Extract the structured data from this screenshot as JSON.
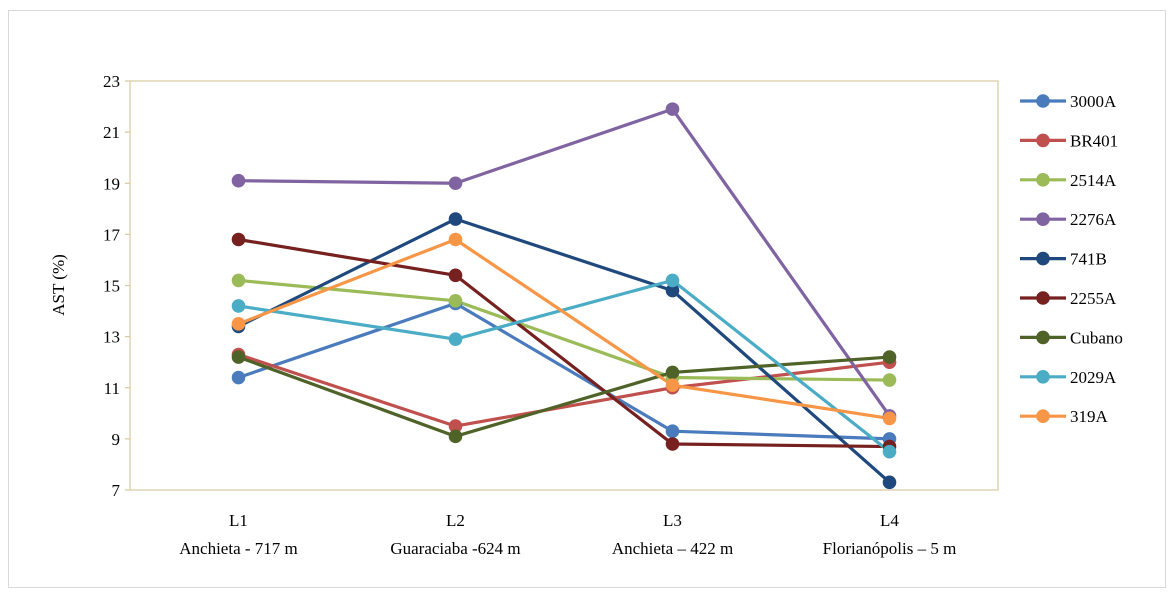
{
  "chart_data": {
    "type": "line",
    "title": "",
    "xlabel": "",
    "ylabel": "AST (%)",
    "ylim": [
      7,
      23
    ],
    "yticks": [
      7,
      9,
      11,
      13,
      15,
      17,
      19,
      21,
      23
    ],
    "grid": false,
    "legend_position": "right",
    "categories": [
      {
        "line1": "L1",
        "line2": "Anchieta - 717 m"
      },
      {
        "line1": "L2",
        "line2": "Guaraciaba -624 m"
      },
      {
        "line1": "L3",
        "line2": "Anchieta – 422 m"
      },
      {
        "line1": "L4",
        "line2": "Florianópolis – 5 m"
      }
    ],
    "series": [
      {
        "name": "3000A",
        "color": "#4a7bbd",
        "values": [
          11.4,
          14.3,
          9.3,
          9.0
        ]
      },
      {
        "name": "BR401",
        "color": "#c0504d",
        "values": [
          12.3,
          9.5,
          11.0,
          12.0
        ]
      },
      {
        "name": "2514A",
        "color": "#9bbb59",
        "values": [
          15.2,
          14.4,
          11.4,
          11.3
        ]
      },
      {
        "name": "2276A",
        "color": "#8064a2",
        "values": [
          19.1,
          19.0,
          21.9,
          9.9
        ]
      },
      {
        "name": "741B",
        "color": "#1f497d",
        "values": [
          13.4,
          17.6,
          14.8,
          7.3
        ]
      },
      {
        "name": "2255A",
        "color": "#772020",
        "values": [
          16.8,
          15.4,
          8.8,
          8.7
        ]
      },
      {
        "name": "Cubano",
        "color": "#4f6228",
        "values": [
          12.2,
          9.1,
          11.6,
          12.2
        ]
      },
      {
        "name": "2029A",
        "color": "#4bacc6",
        "values": [
          14.2,
          12.9,
          15.2,
          8.5
        ]
      },
      {
        "name": "319A",
        "color": "#f79646",
        "values": [
          13.5,
          16.8,
          11.1,
          9.8
        ]
      }
    ]
  }
}
